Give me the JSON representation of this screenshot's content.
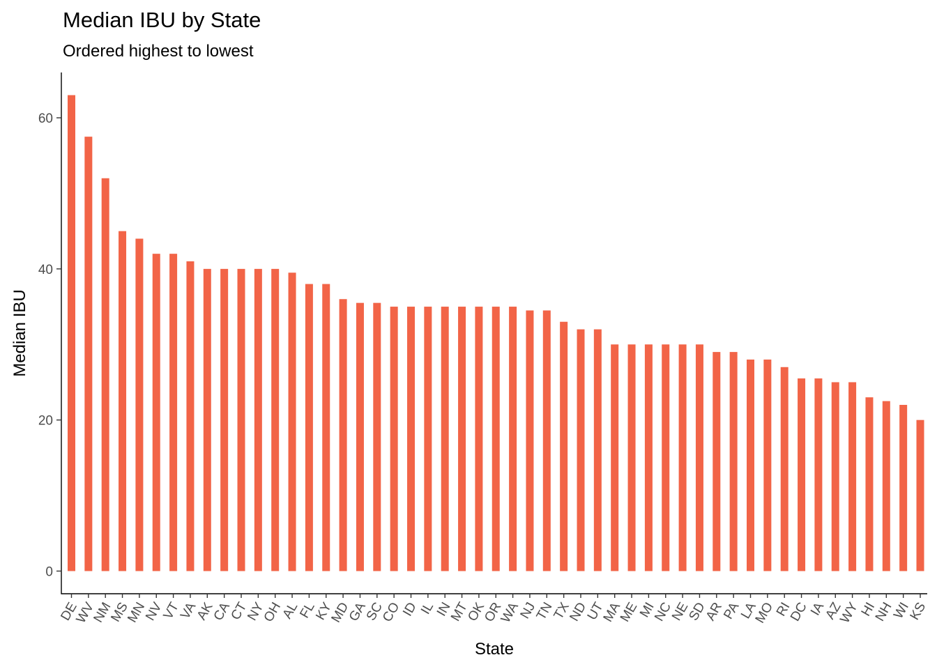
{
  "chart_data": {
    "type": "bar",
    "title": "Median IBU by State",
    "subtitle": "Ordered highest to lowest",
    "xlabel": "State",
    "ylabel": "Median IBU",
    "ylim": [
      -3,
      66
    ],
    "yticks": [
      0,
      20,
      40,
      60
    ],
    "grid": false,
    "bar_color": "#F26447",
    "categories": [
      "DE",
      "WV",
      "NM",
      "MS",
      "MN",
      "NV",
      "VT",
      "VA",
      "AK",
      "CA",
      "CT",
      "NY",
      "OH",
      "AL",
      "FL",
      "KY",
      "MD",
      "GA",
      "SC",
      "CO",
      "ID",
      "IL",
      "IN",
      "MT",
      "OK",
      "OR",
      "WA",
      "NJ",
      "TN",
      "TX",
      "ND",
      "UT",
      "MA",
      "ME",
      "MI",
      "NC",
      "NE",
      "SD",
      "AR",
      "PA",
      "LA",
      "MO",
      "RI",
      "DC",
      "IA",
      "AZ",
      "WY",
      "HI",
      "NH",
      "WI",
      "KS"
    ],
    "values": [
      63,
      57.5,
      52,
      45,
      44,
      42,
      42,
      41,
      40,
      40,
      40,
      40,
      40,
      39.5,
      38,
      38,
      36,
      35.5,
      35.5,
      35,
      35,
      35,
      35,
      35,
      35,
      35,
      35,
      34.5,
      34.5,
      33,
      32,
      32,
      30,
      30,
      30,
      30,
      30,
      30,
      29,
      29,
      28,
      28,
      27,
      25.5,
      25.5,
      25,
      25,
      23,
      22.5,
      22,
      20
    ]
  }
}
